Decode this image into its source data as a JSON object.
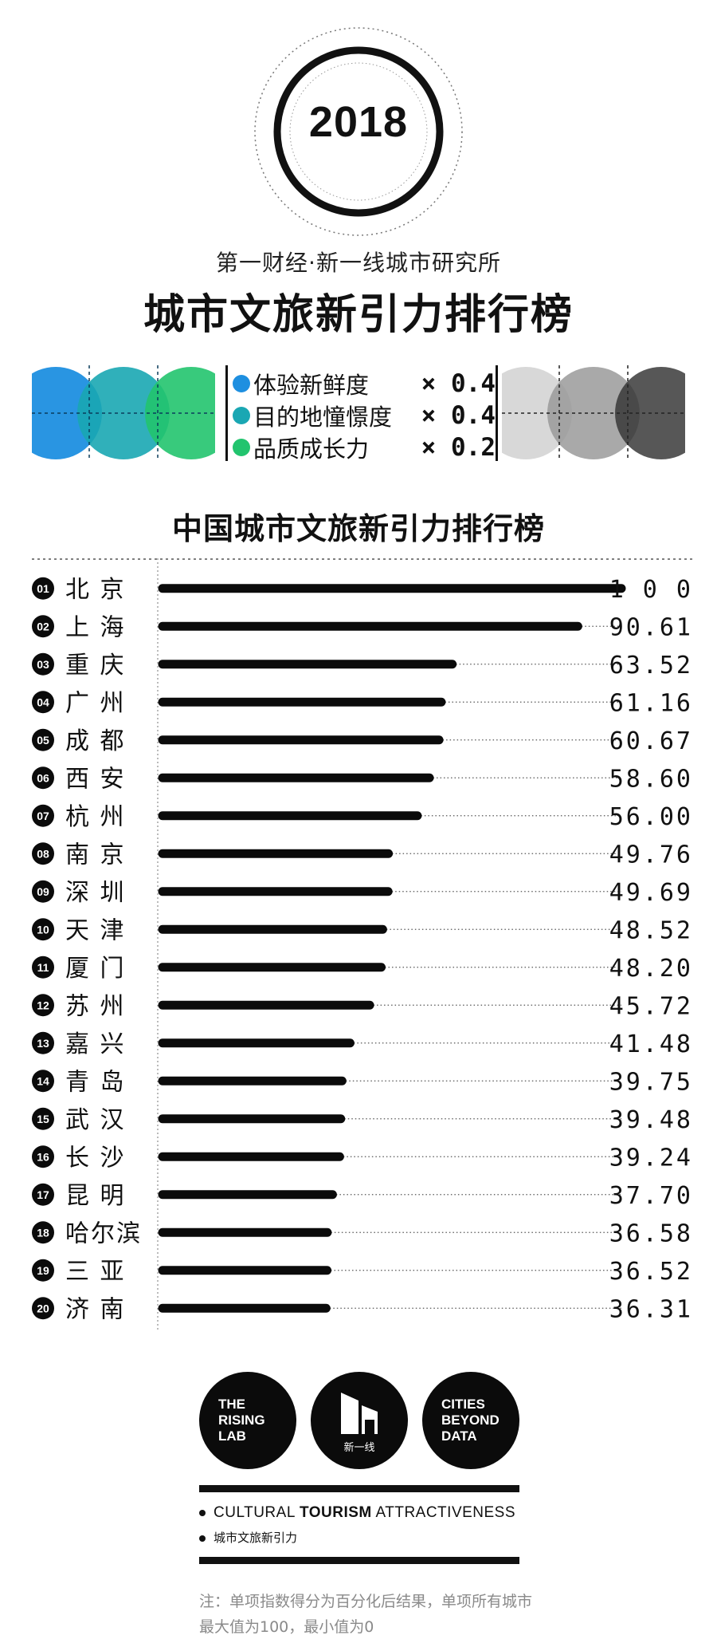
{
  "header": {
    "year": "2018",
    "subtitle": "第一财经·新一线城市研究所",
    "title": "城市文旅新引力排行榜"
  },
  "formula": {
    "factors": [
      {
        "name": "体验新鲜度",
        "weight": "× 0.4",
        "color": "#1e8fe0"
      },
      {
        "name": "目的地憧憬度",
        "weight": "× 0.4",
        "color": "#1aa7b3"
      },
      {
        "name": "品质成长力",
        "weight": "× 0.2",
        "color": "#22c46e"
      }
    ]
  },
  "chart_data": {
    "type": "bar",
    "orientation": "horizontal",
    "title": "中国城市文旅新引力排行榜",
    "xlim": [
      0,
      100
    ],
    "categories": [
      "北 京",
      "上 海",
      "重 庆",
      "广 州",
      "成 都",
      "西 安",
      "杭 州",
      "南 京",
      "深 圳",
      "天 津",
      "厦 门",
      "苏 州",
      "嘉 兴",
      "青 岛",
      "武 汉",
      "长 沙",
      "昆 明",
      "哈尔滨",
      "三 亚",
      "济 南"
    ],
    "ranks": [
      "01",
      "02",
      "03",
      "04",
      "05",
      "06",
      "07",
      "08",
      "09",
      "10",
      "11",
      "12",
      "13",
      "14",
      "15",
      "16",
      "17",
      "18",
      "19",
      "20"
    ],
    "values": [
      100,
      90.61,
      63.52,
      61.16,
      60.67,
      58.6,
      56.0,
      49.76,
      49.69,
      48.52,
      48.2,
      45.72,
      41.48,
      39.75,
      39.48,
      39.24,
      37.7,
      36.58,
      36.52,
      36.31
    ],
    "value_labels": [
      "1 0 0",
      "90.61",
      "63.52",
      "61.16",
      "60.67",
      "58.60",
      "56.00",
      "49.76",
      "49.69",
      "48.52",
      "48.20",
      "45.72",
      "41.48",
      "39.75",
      "39.48",
      "39.24",
      "37.70",
      "36.58",
      "36.52",
      "36.31"
    ],
    "bar_color": "#0b0b0b"
  },
  "footer": {
    "logos": [
      {
        "lines": [
          "THE",
          "RISING",
          "LAB"
        ]
      },
      {
        "caption": "新一线"
      },
      {
        "lines": [
          "CITIES",
          "BEYOND",
          "DATA"
        ]
      }
    ],
    "tagline_en_pre": "CULTURAL ",
    "tagline_en_bold": "TOURISM",
    "tagline_en_post": " ATTRACTIVENESS",
    "tagline_cn": "城市文旅新引力",
    "note": "注：单项指数得分为百分化后结果，单项所有城市最大值为100，最小值为0"
  }
}
